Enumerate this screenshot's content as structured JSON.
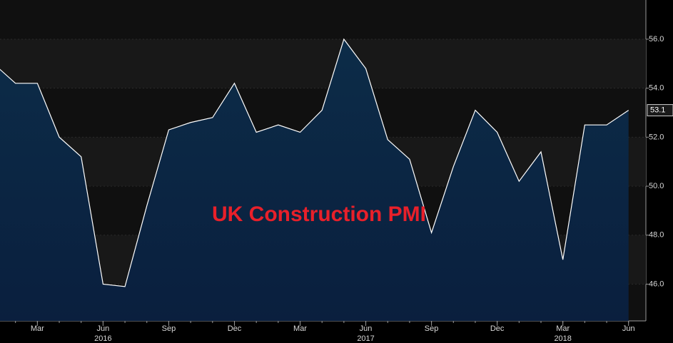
{
  "chart_data": {
    "type": "area",
    "title": "UK Construction PMI",
    "x": [
      "2016-01",
      "2016-02",
      "2016-03",
      "2016-04",
      "2016-05",
      "2016-06",
      "2016-07",
      "2016-08",
      "2016-09",
      "2016-10",
      "2016-11",
      "2016-12",
      "2017-01",
      "2017-02",
      "2017-03",
      "2017-04",
      "2017-05",
      "2017-06",
      "2017-07",
      "2017-08",
      "2017-09",
      "2017-10",
      "2017-11",
      "2017-12",
      "2018-01",
      "2018-02",
      "2018-03",
      "2018-04",
      "2018-05",
      "2018-06"
    ],
    "series": [
      {
        "color": "#ffffff",
        "values": [
          55.0,
          54.2,
          54.2,
          52.0,
          51.2,
          46.0,
          45.9,
          49.2,
          52.3,
          52.6,
          52.8,
          54.2,
          52.2,
          52.5,
          52.2,
          53.1,
          56.0,
          54.8,
          51.9,
          51.1,
          48.1,
          50.8,
          53.1,
          52.2,
          50.2,
          51.4,
          47.0,
          52.5,
          52.5,
          53.1
        ]
      }
    ],
    "xticks": [
      {
        "value": "2016-03",
        "label": "Mar"
      },
      {
        "value": "2016-06",
        "label": "Jun"
      },
      {
        "value": "2016-09",
        "label": "Sep"
      },
      {
        "value": "2016-12",
        "label": "Dec"
      },
      {
        "value": "2017-03",
        "label": "Mar"
      },
      {
        "value": "2017-06",
        "label": "Jun"
      },
      {
        "value": "2017-09",
        "label": "Sep"
      },
      {
        "value": "2017-12",
        "label": "Dec"
      },
      {
        "value": "2018-03",
        "label": "Mar"
      },
      {
        "value": "2018-06",
        "label": "Jun"
      }
    ],
    "xyears": [
      {
        "value": "2016-06",
        "label": "2016"
      },
      {
        "value": "2017-06",
        "label": "2017"
      },
      {
        "value": "2018-03",
        "label": "2018"
      }
    ],
    "ylim": [
      44.5,
      57.6
    ],
    "yticks": [
      {
        "value": 46,
        "label": "46.0"
      },
      {
        "value": 48,
        "label": "48.0"
      },
      {
        "value": 50,
        "label": "50.0"
      },
      {
        "value": 52,
        "label": "52.0"
      },
      {
        "value": 54,
        "label": "54.0"
      },
      {
        "value": 56,
        "label": "56.0"
      }
    ],
    "title_color": "#e8202a"
  }
}
